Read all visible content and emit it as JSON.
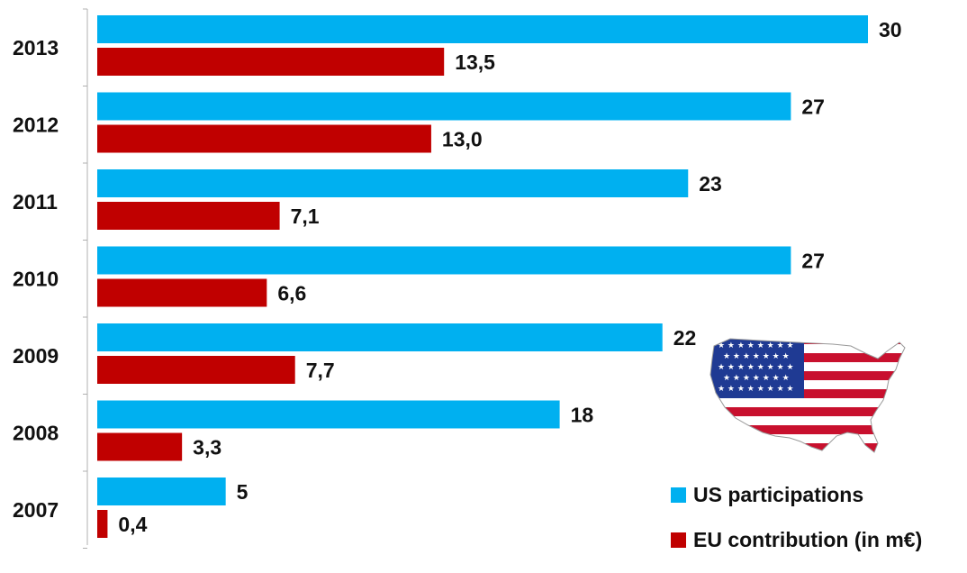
{
  "chart_data": {
    "type": "bar",
    "orientation": "horizontal",
    "categories": [
      "2013",
      "2012",
      "2011",
      "2010",
      "2009",
      "2008",
      "2007"
    ],
    "series": [
      {
        "name": "US participations",
        "color": "#00B0F0",
        "values": [
          30,
          27,
          23,
          27,
          22,
          18,
          5
        ],
        "labels": [
          "30",
          "27",
          "23",
          "27",
          "22",
          "18",
          "5"
        ]
      },
      {
        "name": "EU contribution (in m€)",
        "color": "#C00000",
        "values": [
          13.5,
          13.0,
          7.1,
          6.6,
          7.7,
          3.3,
          0.4
        ],
        "labels": [
          "13,5",
          "13,0",
          "7,1",
          "6,6",
          "7,7",
          "3,3",
          "0,4"
        ]
      }
    ],
    "xlim": [
      0,
      30
    ],
    "grid": false,
    "legend_position": "bottom-right"
  },
  "decoration": {
    "icon": "usa-flag-map-icon"
  }
}
